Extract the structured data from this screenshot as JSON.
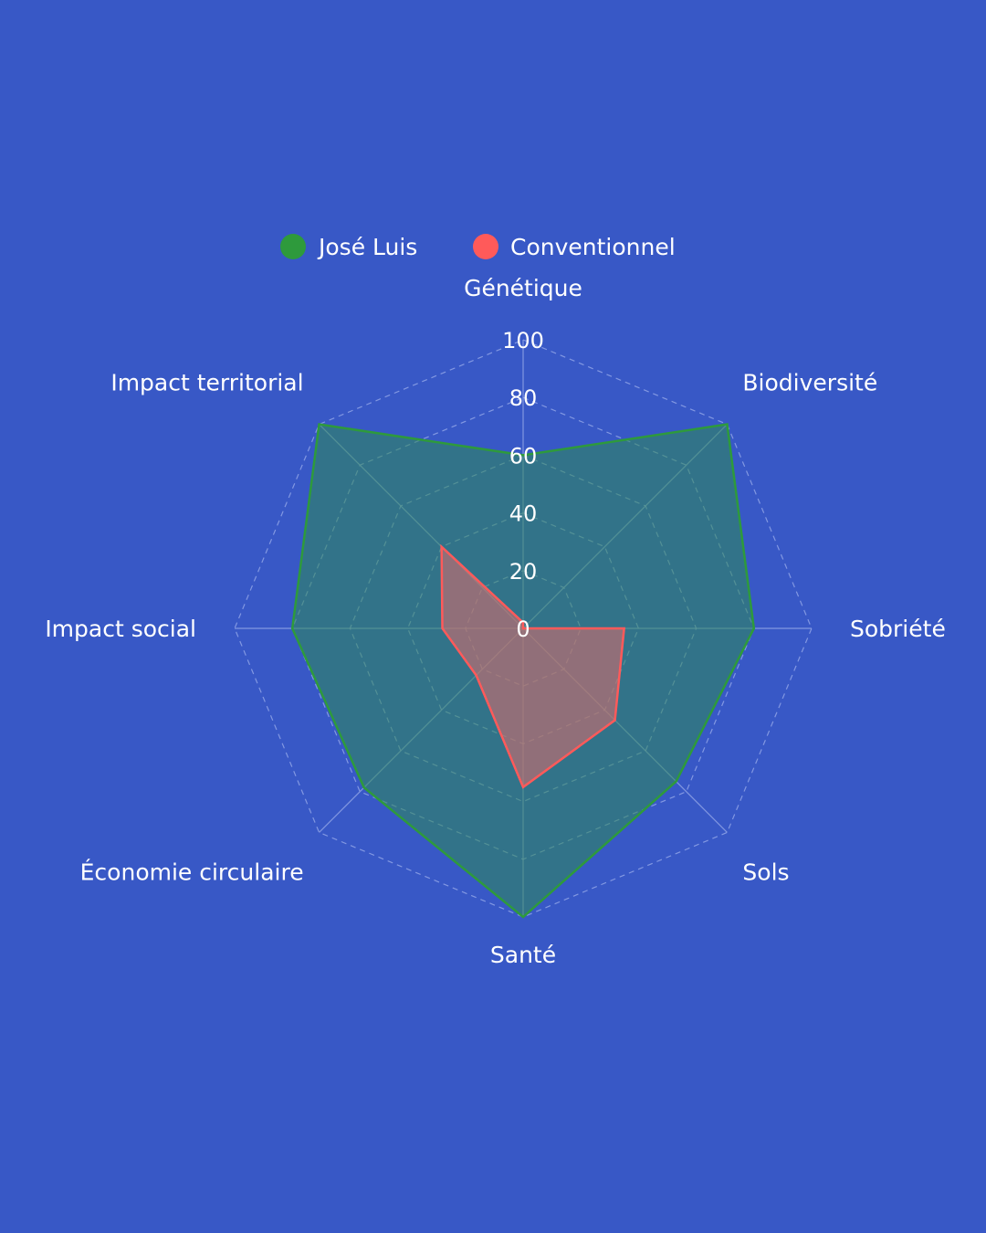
{
  "chart_data": {
    "type": "radar",
    "axes": [
      "Génétique",
      "Biodiversité",
      "Sobriété",
      "Sols",
      "Santé",
      "Économie circulaire",
      "Impact social",
      "Impact territorial"
    ],
    "rlim": [
      0,
      100
    ],
    "ticks": [
      "0",
      "20",
      "40",
      "60",
      "80",
      "100"
    ],
    "tick_values": [
      0,
      20,
      40,
      60,
      80,
      100
    ],
    "grid": true,
    "legend_position": "top-center",
    "series": [
      {
        "name": "José Luis",
        "values": [
          60,
          100,
          80,
          75,
          100,
          78,
          80,
          100
        ],
        "color": "#2e9a3c",
        "fill": "#2e8b57"
      },
      {
        "name": "Conventionnel",
        "values": [
          2,
          0,
          35,
          45,
          55,
          23,
          28,
          40
        ],
        "color": "#ff5a5a",
        "fill": "#e06c6c"
      }
    ]
  },
  "colors": {
    "background": "#3858c6",
    "grid": "#8fa3e6",
    "text": "#ffffff"
  }
}
